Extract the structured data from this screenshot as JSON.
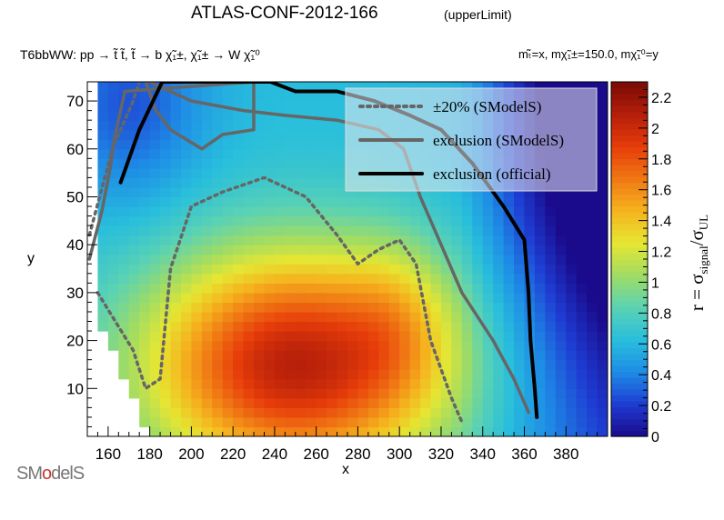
{
  "header": {
    "title": "ATLAS-CONF-2012-166",
    "subtitle": "(upperLimit)",
    "process": "T6bbWW: pp → t̃ t̃, t̃ → b χ̃₁±, χ̃₁± → W χ̃₁⁰",
    "mass_info": "mₜ̃=x, mχ̃₁±=150.0, mχ̃₁⁰=y"
  },
  "logo": {
    "text_a": "SM",
    "text_o": "o",
    "text_b": "delS"
  },
  "chart_data": {
    "type": "heatmap",
    "xlabel": "x",
    "ylabel": "y",
    "zlabel_main": "r = σ",
    "zlabel_sub1": "signal",
    "zlabel_sep": "/σ",
    "zlabel_sub2": "UL",
    "xlim": [
      150,
      400
    ],
    "ylim": [
      0,
      74
    ],
    "zlim": [
      0,
      2.3
    ],
    "x_ticks": [
      160,
      180,
      200,
      220,
      240,
      260,
      280,
      300,
      320,
      340,
      360,
      380
    ],
    "y_ticks": [
      10,
      20,
      30,
      40,
      50,
      60,
      70
    ],
    "z_ticks": [
      0,
      0.2,
      0.4,
      0.6,
      0.8,
      1,
      1.2,
      1.4,
      1.6,
      1.8,
      2,
      2.2
    ],
    "legend": {
      "placement": "top-right",
      "entries": [
        {
          "label": "±20% (SModelS)",
          "style": "dotted",
          "color": "#666666"
        },
        {
          "label": "exclusion (SModelS)",
          "style": "solid",
          "color": "#666666"
        },
        {
          "label": "exclusion (official)",
          "style": "solid",
          "color": "#000000"
        }
      ]
    },
    "exclusion_official": [
      [
        166,
        53
      ],
      [
        175,
        64
      ],
      [
        186,
        74
      ],
      [
        238,
        74
      ],
      [
        250,
        72
      ],
      [
        270,
        72
      ],
      [
        288,
        70
      ],
      [
        305,
        67
      ],
      [
        320,
        64
      ],
      [
        335,
        57
      ],
      [
        350,
        48
      ],
      [
        360,
        41
      ],
      [
        362,
        30
      ],
      [
        363,
        20
      ],
      [
        365,
        10
      ],
      [
        366,
        4
      ]
    ],
    "exclusion_smodels": [
      [
        151,
        37
      ],
      [
        157,
        47
      ],
      [
        161,
        56
      ],
      [
        163,
        62
      ],
      [
        166,
        68
      ],
      [
        168,
        72
      ],
      [
        230,
        74
      ],
      [
        230,
        64
      ],
      [
        215,
        63
      ],
      [
        205,
        60
      ],
      [
        190,
        64
      ],
      [
        183,
        68
      ],
      [
        178,
        74
      ],
      [
        180,
        74
      ],
      [
        200,
        70
      ],
      [
        225,
        68
      ],
      [
        245,
        67
      ],
      [
        270,
        66
      ],
      [
        290,
        64
      ],
      [
        302,
        60
      ],
      [
        310,
        50
      ],
      [
        320,
        40
      ],
      [
        330,
        30
      ],
      [
        345,
        20
      ],
      [
        355,
        12
      ],
      [
        362,
        5
      ]
    ],
    "plus20_smodels": [
      [
        151,
        42
      ],
      [
        162,
        60
      ],
      [
        172,
        70
      ],
      [
        175,
        74
      ]
    ],
    "minus20_smodels": [
      [
        155,
        30
      ],
      [
        162,
        25
      ],
      [
        172,
        18
      ],
      [
        178,
        10
      ],
      [
        185,
        12
      ],
      [
        190,
        35
      ],
      [
        200,
        48
      ],
      [
        215,
        51
      ],
      [
        235,
        54
      ],
      [
        255,
        50
      ],
      [
        270,
        42
      ],
      [
        280,
        36
      ],
      [
        290,
        39
      ],
      [
        300,
        41
      ],
      [
        308,
        36
      ],
      [
        315,
        20
      ],
      [
        325,
        8
      ],
      [
        330,
        3
      ]
    ],
    "colors": [
      "#1a0a8c",
      "#1e3cd2",
      "#1e8ce6",
      "#28bedc",
      "#5ad2b4",
      "#a0dc64",
      "#e6e632",
      "#f5b41e",
      "#f07814",
      "#e63c0a",
      "#b41e0a",
      "#7a0a05"
    ]
  }
}
